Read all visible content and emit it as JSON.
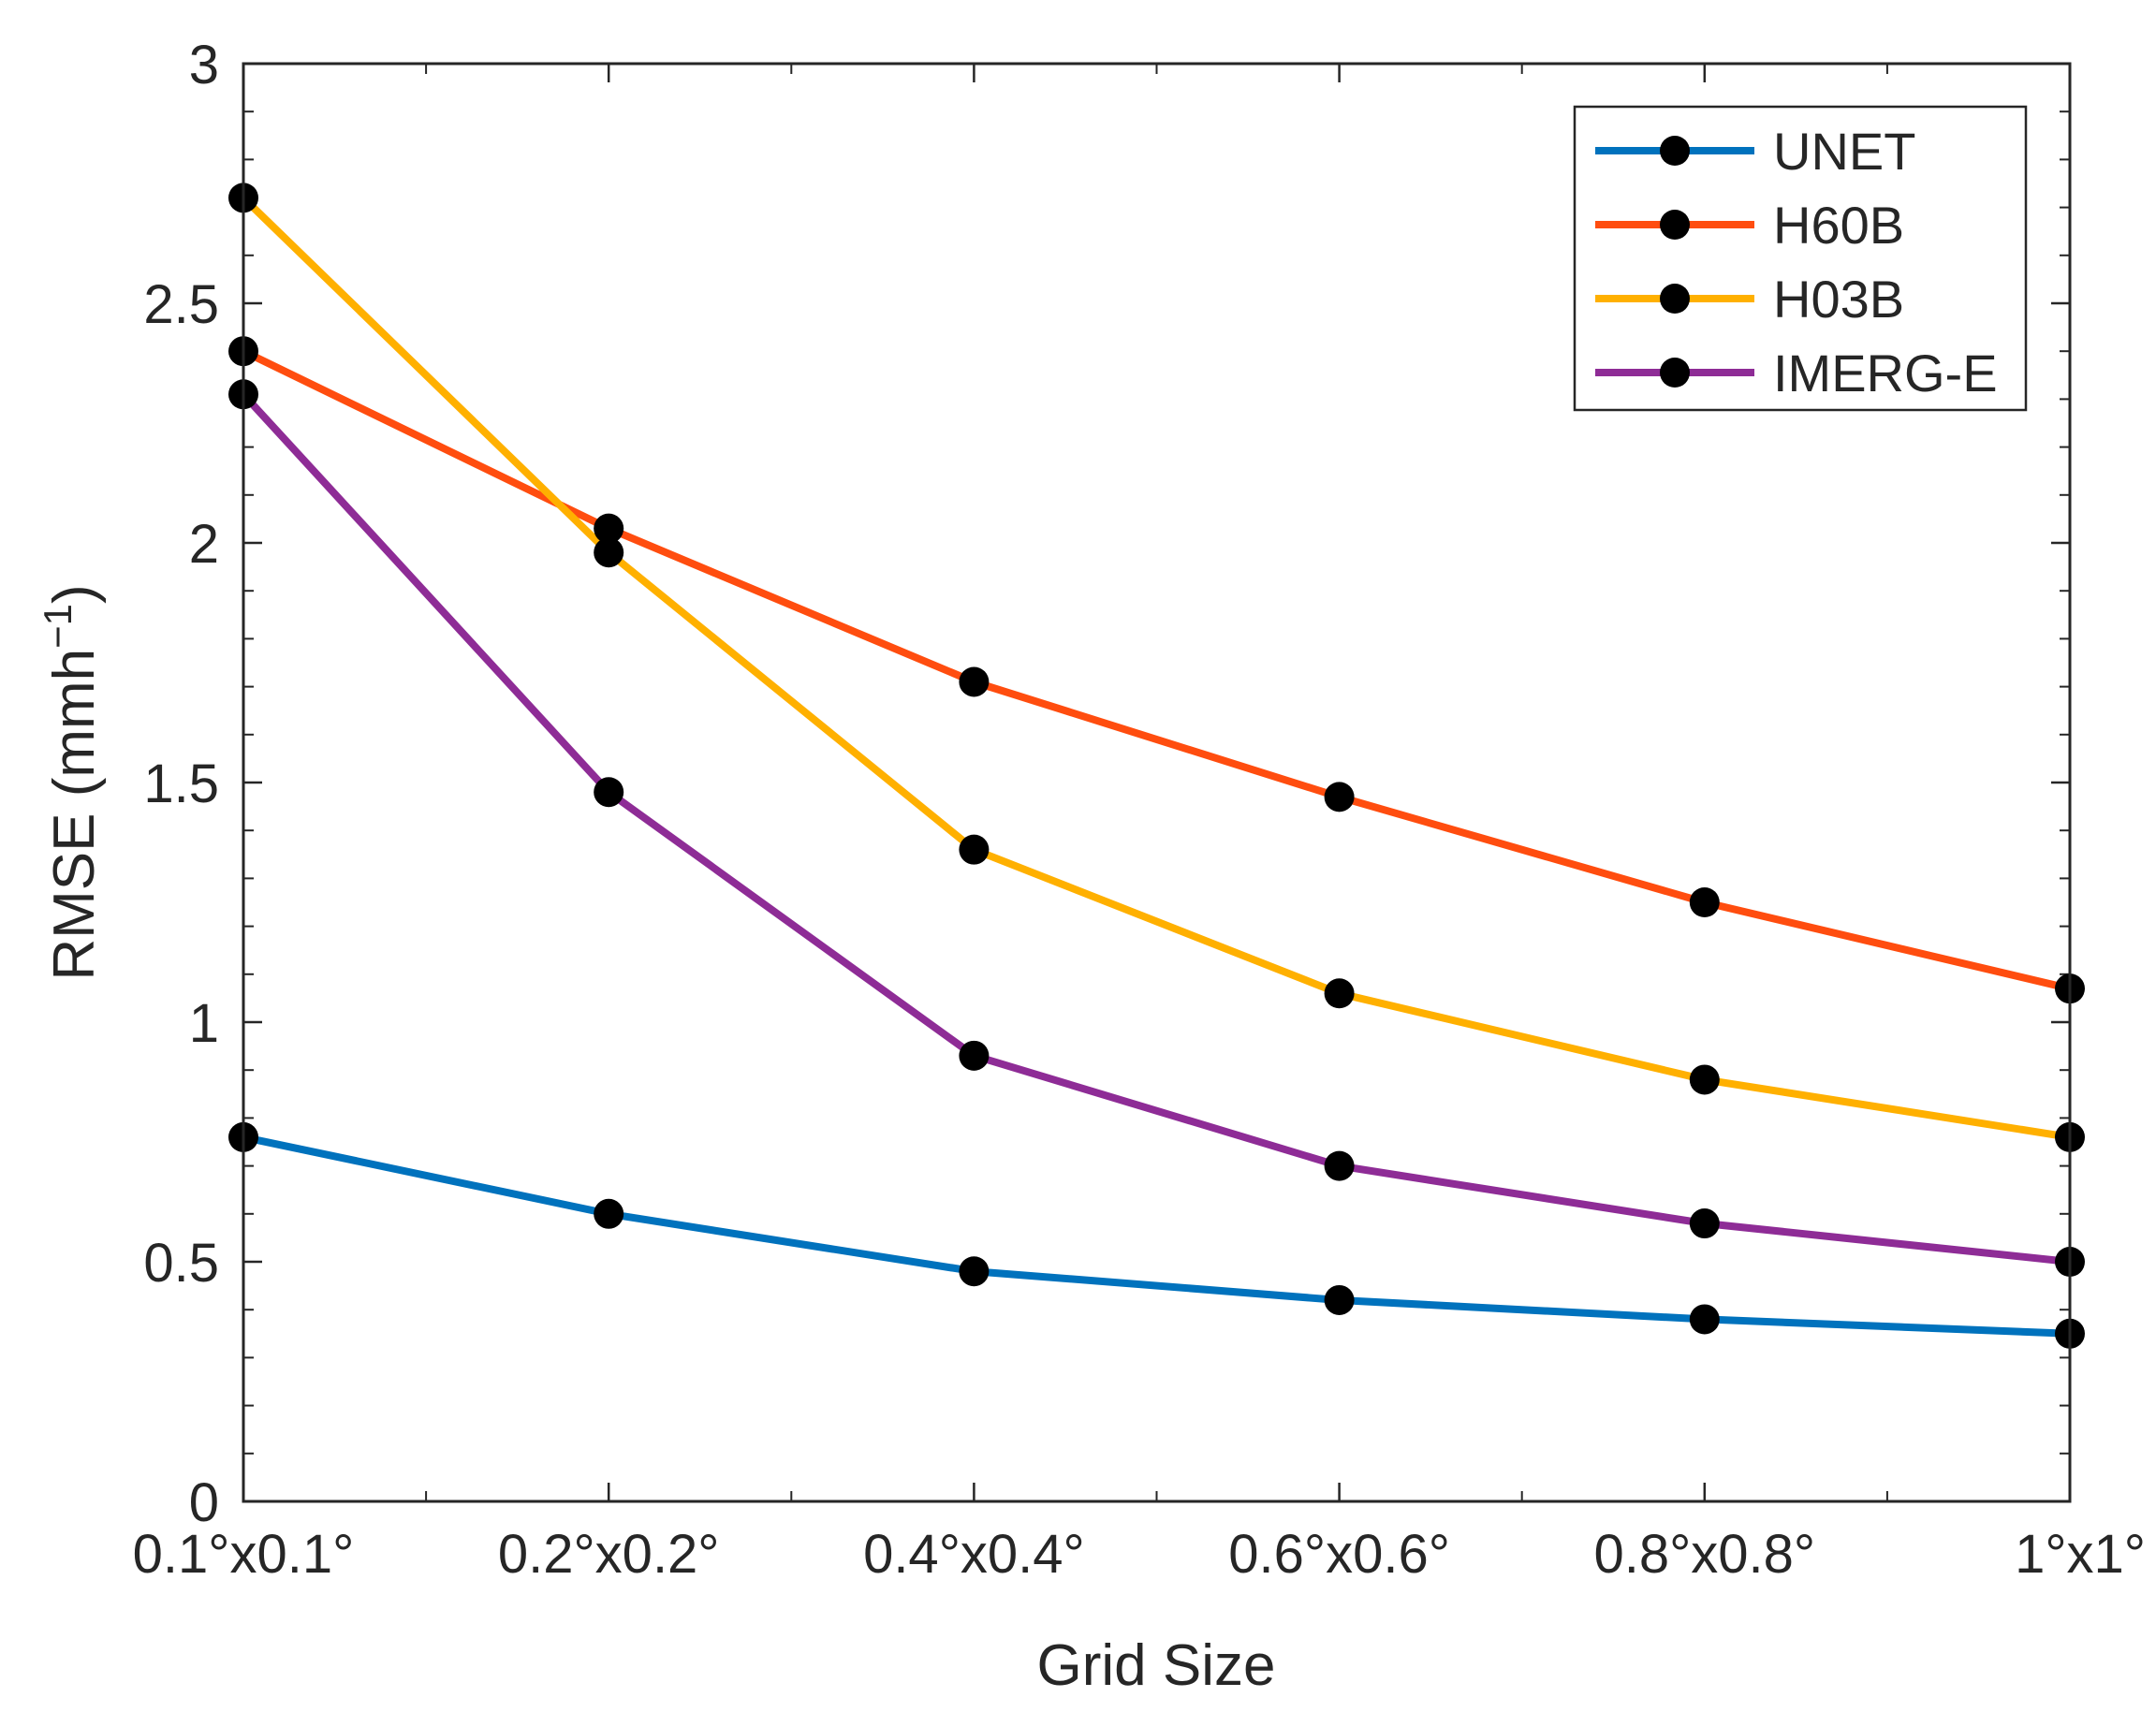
{
  "chart_data": {
    "type": "line",
    "title": "",
    "xlabel": "Grid Size",
    "ylabel_main": "RMSE (mmh",
    "ylabel_sup": "−1",
    "ylabel_close": ")",
    "categories": [
      "0.1°x0.1°",
      "0.2°x0.2°",
      "0.4°x0.4°",
      "0.6°x0.6°",
      "0.8°x0.8°",
      "1°x1°"
    ],
    "ylim": [
      0,
      3
    ],
    "yticks": [
      0,
      0.5,
      1,
      1.5,
      2,
      2.5,
      3
    ],
    "ytick_labels": [
      "0",
      "0.5",
      "1",
      "1.5",
      "2",
      "2.5",
      "3"
    ],
    "legend_position": "top-right",
    "marker_color": "#000000",
    "series": [
      {
        "name": "UNET",
        "color": "#0072BD",
        "values": [
          0.76,
          0.6,
          0.48,
          0.42,
          0.38,
          0.35
        ]
      },
      {
        "name": "H60B",
        "color": "#FF4D0F",
        "values": [
          2.4,
          2.03,
          1.71,
          1.47,
          1.25,
          1.07
        ]
      },
      {
        "name": "H03B",
        "color": "#FFB000",
        "values": [
          2.72,
          1.98,
          1.36,
          1.06,
          0.88,
          0.76
        ]
      },
      {
        "name": "IMERG-E",
        "color": "#8E2C96",
        "values": [
          2.31,
          1.48,
          0.93,
          0.7,
          0.58,
          0.5
        ]
      }
    ]
  }
}
